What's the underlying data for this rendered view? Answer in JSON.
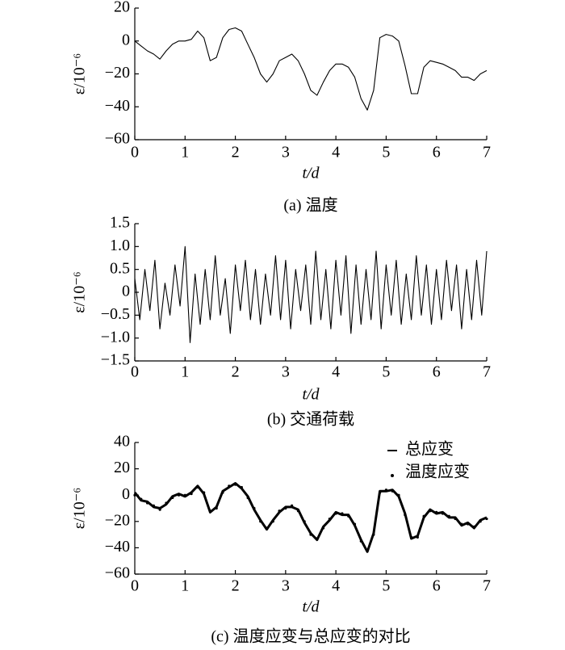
{
  "chart_data": [
    {
      "type": "line",
      "title": "(a) 温度",
      "xlabel": "t/d",
      "ylabel": "ε/10⁻⁶",
      "x": [
        0,
        0.125,
        0.25,
        0.375,
        0.5,
        0.625,
        0.75,
        0.875,
        1,
        1.125,
        1.25,
        1.375,
        1.5,
        1.625,
        1.75,
        1.875,
        2,
        2.125,
        2.25,
        2.375,
        2.5,
        2.625,
        2.75,
        2.875,
        3,
        3.125,
        3.25,
        3.375,
        3.5,
        3.625,
        3.75,
        3.875,
        4,
        4.125,
        4.25,
        4.375,
        4.5,
        4.625,
        4.75,
        4.875,
        5,
        5.125,
        5.25,
        5.375,
        5.5,
        5.625,
        5.75,
        5.875,
        6,
        6.125,
        6.25,
        6.375,
        6.5,
        6.625,
        6.75,
        6.875,
        7
      ],
      "series": [
        {
          "color": "#000000",
          "style": "line",
          "values": [
            0,
            -3,
            -6,
            -8,
            -11,
            -6,
            -2,
            0,
            0,
            1,
            6,
            2,
            -12,
            -10,
            2,
            7,
            8,
            6,
            -2,
            -10,
            -20,
            -25,
            -20,
            -12,
            -10,
            -8,
            -12,
            -20,
            -30,
            -33,
            -25,
            -18,
            -14,
            -14,
            -16,
            -22,
            -35,
            -42,
            -30,
            2,
            4,
            3,
            0,
            -15,
            -32,
            -32,
            -16,
            -12,
            -13,
            -14,
            -16,
            -18,
            -22,
            -22,
            -24,
            -20,
            -18
          ]
        }
      ],
      "xlim": [
        0,
        7
      ],
      "ylim": [
        -60,
        20
      ],
      "xticks": [
        0,
        1,
        2,
        3,
        4,
        5,
        6,
        7
      ],
      "yticks": [
        {
          "value": -60,
          "label": "−60"
        },
        {
          "value": -40,
          "label": "−40"
        },
        {
          "value": -20,
          "label": "−20"
        },
        0,
        20
      ]
    },
    {
      "type": "line",
      "title": "(b) 交通荷载",
      "xlabel": "t/d",
      "ylabel": "ε/10⁻⁶",
      "x": [
        0,
        0.1,
        0.2,
        0.3,
        0.4,
        0.5,
        0.6,
        0.7,
        0.8,
        0.9,
        1,
        1.1,
        1.2,
        1.3,
        1.4,
        1.5,
        1.6,
        1.7,
        1.8,
        1.9,
        2,
        2.1,
        2.2,
        2.3,
        2.4,
        2.5,
        2.6,
        2.7,
        2.8,
        2.9,
        3,
        3.1,
        3.2,
        3.3,
        3.4,
        3.5,
        3.6,
        3.7,
        3.8,
        3.9,
        4,
        4.1,
        4.2,
        4.3,
        4.4,
        4.5,
        4.6,
        4.7,
        4.8,
        4.9,
        5,
        5.1,
        5.2,
        5.3,
        5.4,
        5.5,
        5.6,
        5.7,
        5.8,
        5.9,
        6,
        6.1,
        6.2,
        6.3,
        6.4,
        6.5,
        6.6,
        6.7,
        6.8,
        6.9,
        7
      ],
      "series": [
        {
          "color": "#000000",
          "style": "line",
          "values": [
            0.3,
            -0.6,
            0.5,
            -0.4,
            0.7,
            -0.8,
            0.2,
            -0.5,
            0.6,
            -0.3,
            1.0,
            -1.1,
            0.4,
            -0.7,
            0.5,
            -0.6,
            0.8,
            -0.5,
            0.3,
            -0.9,
            0.6,
            -0.4,
            0.7,
            -0.6,
            0.5,
            -0.7,
            0.4,
            -0.5,
            0.8,
            -0.6,
            0.7,
            -0.8,
            0.5,
            -0.4,
            0.6,
            -0.7,
            0.9,
            -0.6,
            0.5,
            -0.8,
            0.7,
            -0.5,
            0.8,
            -0.9,
            0.6,
            -0.7,
            0.5,
            -0.6,
            0.9,
            -0.8,
            0.6,
            -0.5,
            0.7,
            -0.7,
            0.4,
            -0.6,
            0.8,
            -0.5,
            0.6,
            -0.7,
            0.5,
            -0.6,
            0.7,
            -0.4,
            0.6,
            -0.8,
            0.5,
            -0.6,
            0.7,
            -0.5,
            0.9
          ]
        }
      ],
      "xlim": [
        0,
        7
      ],
      "ylim": [
        -1.5,
        1.5
      ],
      "xticks": [
        0,
        1,
        2,
        3,
        4,
        5,
        6,
        7
      ],
      "yticks": [
        {
          "value": -1.5,
          "label": "−1.5"
        },
        {
          "value": -1,
          "label": "−1.0"
        },
        {
          "value": -0.5,
          "label": "−0.5"
        },
        0,
        0.5,
        {
          "value": 1,
          "label": "1.0"
        },
        1.5
      ]
    },
    {
      "type": "line",
      "title": "(c) 温度应变与总应变的对比",
      "xlabel": "t/d",
      "ylabel": "ε/10⁻⁶",
      "x": [
        0,
        0.125,
        0.25,
        0.375,
        0.5,
        0.625,
        0.75,
        0.875,
        1,
        1.125,
        1.25,
        1.375,
        1.5,
        1.625,
        1.75,
        1.875,
        2,
        2.125,
        2.25,
        2.375,
        2.5,
        2.625,
        2.75,
        2.875,
        3,
        3.125,
        3.25,
        3.375,
        3.5,
        3.625,
        3.75,
        3.875,
        4,
        4.125,
        4.25,
        4.375,
        4.5,
        4.625,
        4.75,
        4.875,
        5,
        5.125,
        5.25,
        5.375,
        5.5,
        5.625,
        5.75,
        5.875,
        6,
        6.125,
        6.25,
        6.375,
        6.5,
        6.625,
        6.75,
        6.875,
        7
      ],
      "series": [
        {
          "name": "总应变",
          "color": "#000000",
          "style": "line",
          "values": [
            2,
            -4,
            -5,
            -9,
            -10,
            -7,
            -1,
            1,
            -1,
            2,
            7,
            1,
            -13,
            -9,
            3,
            6,
            9,
            5,
            -1,
            -11,
            -19,
            -26,
            -19,
            -13,
            -9,
            -9,
            -11,
            -21,
            -29,
            -34,
            -24,
            -19,
            -13,
            -15,
            -15,
            -23,
            -34,
            -43,
            -29,
            3,
            3,
            4,
            -1,
            -14,
            -33,
            -31,
            -17,
            -11,
            -14,
            -13,
            -17,
            -17,
            -23,
            -21,
            -25,
            -19,
            -17
          ]
        },
        {
          "name": "温度应变",
          "color": "#000000",
          "style": "dots",
          "values": [
            0,
            -3,
            -6,
            -8,
            -11,
            -6,
            -2,
            0,
            0,
            1,
            6,
            2,
            -12,
            -10,
            2,
            7,
            8,
            6,
            -2,
            -10,
            -20,
            -25,
            -20,
            -12,
            -10,
            -8,
            -12,
            -20,
            -30,
            -33,
            -25,
            -18,
            -14,
            -14,
            -16,
            -22,
            -35,
            -42,
            -30,
            2,
            4,
            3,
            0,
            -15,
            -32,
            -32,
            -16,
            -12,
            -13,
            -14,
            -16,
            -18,
            -22,
            -22,
            -24,
            -20,
            -18
          ]
        }
      ],
      "xlim": [
        0,
        7
      ],
      "ylim": [
        -60,
        40
      ],
      "xticks": [
        0,
        1,
        2,
        3,
        4,
        5,
        6,
        7
      ],
      "yticks": [
        {
          "value": -60,
          "label": "−60"
        },
        {
          "value": -40,
          "label": "−40"
        },
        {
          "value": -20,
          "label": "−20"
        },
        0,
        20,
        40
      ],
      "legend": "upper right"
    }
  ]
}
